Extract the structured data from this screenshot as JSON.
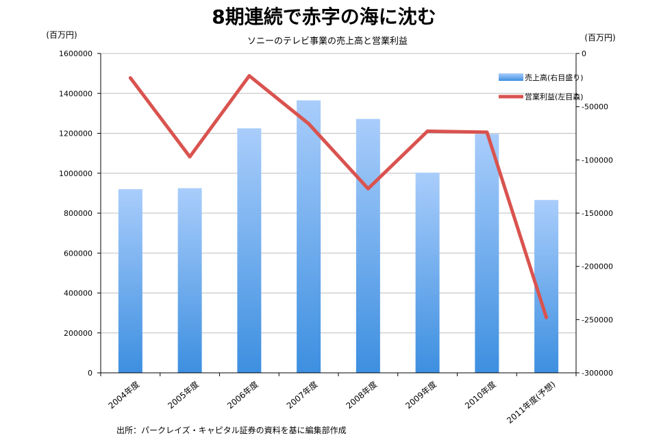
{
  "chart_data": {
    "type": "bar",
    "title": "8期連続で赤字の海に沈む",
    "subtitle": "ソニーのテレビ事業の売上高と営業利益",
    "left_axis_unit": "(百万円)",
    "right_axis_unit": "(百万円)",
    "categories": [
      "2004年度",
      "2005年度",
      "2006年度",
      "2007年度",
      "2008年度",
      "2009年度",
      "2010年度",
      "2011年度(予想)"
    ],
    "series": [
      {
        "name": "売上高(右目盛り)",
        "type": "bar",
        "axis": "left",
        "color": "#5aa0e8",
        "values": [
          920000,
          925000,
          1225000,
          1365000,
          1272000,
          1003000,
          1197000,
          866000
        ]
      },
      {
        "name": "営業利益(左目森)",
        "type": "line",
        "axis": "right",
        "color": "#d9534f",
        "values": [
          -23000,
          -97000,
          -21000,
          -66000,
          -127000,
          -73000,
          -74000,
          -248000
        ]
      }
    ],
    "left_ylim": [
      0,
      1600000
    ],
    "left_ticks": [
      "0",
      "200000",
      "400000",
      "600000",
      "800000",
      "1000000",
      "1200000",
      "1400000",
      "1600000"
    ],
    "right_ylim": [
      -300000,
      0
    ],
    "right_ticks": [
      "0",
      "-50000",
      "-100000",
      "-150000",
      "-200000",
      "-250000",
      "-300000"
    ],
    "grid": true,
    "legend_position": "top-right"
  },
  "source_note": "出所：パークレイズ・キャピタル証券の資料を基に編集部作成"
}
